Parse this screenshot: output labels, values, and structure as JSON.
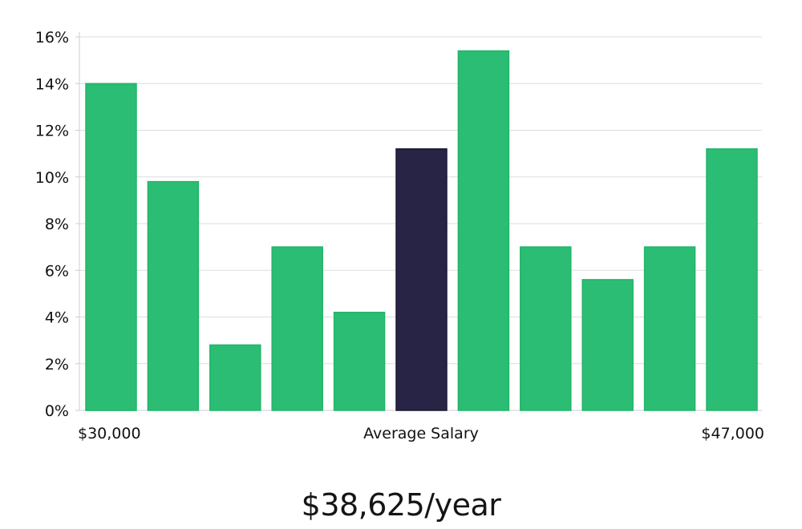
{
  "chart_data": {
    "type": "bar",
    "values": [
      14.0,
      9.8,
      2.8,
      7.0,
      4.2,
      11.2,
      15.4,
      7.0,
      5.6,
      7.0,
      11.2
    ],
    "highlight_index": 5,
    "ylim": [
      0,
      16
    ],
    "yticks": [
      {
        "value": 0,
        "label": "0%"
      },
      {
        "value": 2,
        "label": "2%"
      },
      {
        "value": 4,
        "label": "4%"
      },
      {
        "value": 6,
        "label": "6%"
      },
      {
        "value": 8,
        "label": "8%"
      },
      {
        "value": 10,
        "label": "10%"
      },
      {
        "value": 12,
        "label": "12%"
      },
      {
        "value": 14,
        "label": "14%"
      },
      {
        "value": 16,
        "label": "16%"
      }
    ],
    "x_labels": {
      "left": "$30,000",
      "center": "Average Salary",
      "right": "$47,000"
    },
    "grid": true,
    "colors": {
      "bar": "#2bbd73",
      "bar_edge": "#22b56a",
      "highlight": "#282446",
      "highlight_edge": "#1a1733",
      "grid": "#dddddd"
    }
  },
  "average_salary": "$38,625/year"
}
